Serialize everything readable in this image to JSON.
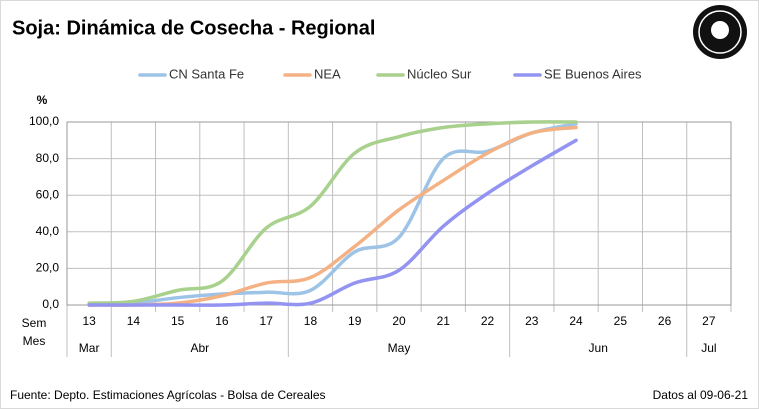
{
  "chart_data": {
    "type": "line",
    "title": "Soja: Dinámica de Cosecha - Regional",
    "y_axis_label": "%",
    "categories": [
      "13",
      "14",
      "15",
      "16",
      "17",
      "18",
      "19",
      "20",
      "21",
      "22",
      "23",
      "24",
      "25",
      "26",
      "27"
    ],
    "months": [
      "Mar",
      "Abr",
      "Abr",
      "Abr",
      "Abr",
      "May",
      "May",
      "May",
      "May",
      "May",
      "Jun",
      "Jun",
      "Jun",
      "Jun",
      "Jul"
    ],
    "row_labels": [
      "Sem",
      "Mes"
    ],
    "series": [
      {
        "name": "CN Santa Fe",
        "color": "#9dc3e6",
        "values": [
          0,
          1,
          4,
          6,
          7,
          8,
          29,
          37,
          80,
          84,
          94,
          99,
          null,
          null,
          null
        ]
      },
      {
        "name": "NEA",
        "color": "#f4b183",
        "values": [
          0,
          0,
          1,
          5,
          12,
          15,
          32,
          52,
          68,
          83,
          94,
          97,
          null,
          null,
          null
        ]
      },
      {
        "name": "Núcleo Sur",
        "color": "#a9d18e",
        "values": [
          1,
          2,
          8,
          13,
          42,
          54,
          83,
          92,
          97,
          99,
          100,
          100,
          null,
          null,
          null
        ]
      },
      {
        "name": "SE Buenos Aires",
        "color": "#9393f2",
        "values": [
          0,
          0,
          0,
          0,
          1,
          1,
          12,
          19,
          43,
          61,
          76,
          90,
          null,
          null,
          null
        ]
      }
    ],
    "ylim": [
      0,
      100
    ],
    "yticks": [
      {
        "value": 0,
        "label": "0,0"
      },
      {
        "value": 20,
        "label": "20,0"
      },
      {
        "value": 40,
        "label": "40,0"
      },
      {
        "value": 60,
        "label": "60,0"
      },
      {
        "value": 80,
        "label": "80,0"
      },
      {
        "value": 100,
        "label": "100,0"
      }
    ],
    "grid": true,
    "legend": "top",
    "source": "Fuente: Depto. Estimaciones Agrícolas - Bolsa de Cereales",
    "date_note": "Datos al 09-06-21"
  }
}
